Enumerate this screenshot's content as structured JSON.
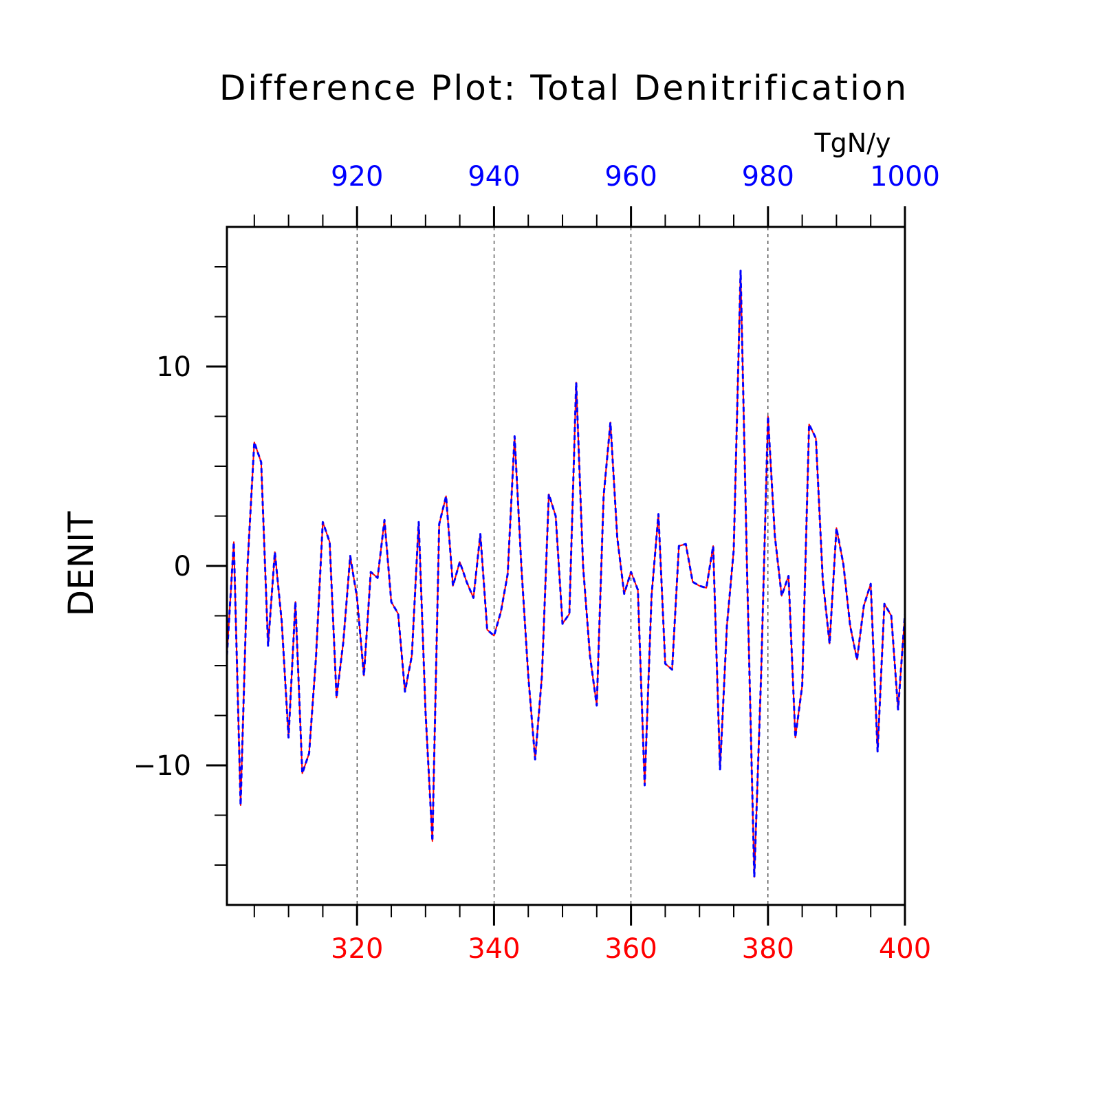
{
  "chart_data": {
    "type": "line",
    "title": "Difference Plot: Total Denitrification",
    "units": "TgN/y",
    "ylabel": "DENIT",
    "xlim_bottom": [
      301,
      400
    ],
    "xlim_top": [
      901,
      1000
    ],
    "ylim": [
      -17,
      17
    ],
    "bottom_axis": {
      "ticks": [
        "320",
        "340",
        "360",
        "380",
        "400"
      ],
      "values": [
        320,
        340,
        360,
        380,
        400
      ],
      "color": "#ff0000"
    },
    "top_axis": {
      "ticks": [
        "920",
        "940",
        "960",
        "980",
        "1000"
      ],
      "values": [
        920,
        940,
        960,
        980,
        1000
      ],
      "color": "#0000ff"
    },
    "y_ticks": {
      "labels": [
        "10",
        "0",
        "−10"
      ],
      "values": [
        10,
        0,
        -10
      ]
    },
    "grid": "vertical dashed at major x ticks",
    "series": [
      {
        "color": "#ff0000",
        "style": "solid",
        "x": [
          301,
          302,
          303,
          304,
          305,
          306,
          307,
          308,
          309,
          310,
          311,
          312,
          313,
          314,
          315,
          316,
          317,
          318,
          319,
          320,
          321,
          322,
          323,
          324,
          325,
          326,
          327,
          328,
          329,
          330,
          331,
          332,
          333,
          334,
          335,
          336,
          337,
          338,
          339,
          340,
          341,
          342,
          343,
          344,
          345,
          346,
          347,
          348,
          349,
          350,
          351,
          352,
          353,
          354,
          355,
          356,
          357,
          358,
          359,
          360,
          361,
          362,
          363,
          364,
          365,
          366,
          367,
          368,
          369,
          370,
          371,
          372,
          373,
          374,
          375,
          376,
          377,
          378,
          379,
          380,
          381,
          382,
          383,
          384,
          385,
          386,
          387,
          388,
          389,
          390,
          391,
          392,
          393,
          394,
          395,
          396,
          397,
          398,
          399,
          400
        ],
        "values": [
          -4.5,
          1.2,
          -12,
          0,
          6.2,
          5.2,
          -4,
          0.7,
          -2.8,
          -8.6,
          -1.8,
          -10.4,
          -9.4,
          -4.6,
          2.2,
          1.2,
          -6.6,
          -3.8,
          0.5,
          -1.6,
          -5.5,
          -0.3,
          -0.6,
          2.3,
          -1.8,
          -2.4,
          -6.3,
          -4.5,
          2.2,
          -7.3,
          -13.8,
          2.1,
          3.5,
          -1,
          0.2,
          -0.8,
          -1.6,
          1.6,
          -3.2,
          -3.5,
          -2.3,
          -0.4,
          6.5,
          -0.1,
          -5.5,
          -9.7,
          -5.5,
          3.6,
          2.5,
          -2.9,
          -2.4,
          9.2,
          0,
          -4.5,
          -7,
          3.5,
          7.2,
          1.4,
          -1.4,
          -0.3,
          -1.2,
          -11,
          -1.5,
          2.6,
          -4.9,
          -5.2,
          1,
          1.1,
          -0.8,
          -1,
          -1.1,
          1,
          -10.2,
          -3,
          0.8,
          14.8,
          -1,
          -15.6,
          -5.5,
          7.5,
          1.5,
          -1.5,
          -0.5,
          -8.6,
          -6,
          7.1,
          6.4,
          -0.7,
          -3.9,
          1.9,
          0.1,
          -3,
          -4.7,
          -2,
          -0.9,
          -9.3,
          -1.9,
          -2.5,
          -7.2,
          -2.4
        ]
      },
      {
        "color": "#0000ff",
        "style": "dashed",
        "x": [
          901,
          902,
          903,
          904,
          905,
          906,
          907,
          908,
          909,
          910,
          911,
          912,
          913,
          914,
          915,
          916,
          917,
          918,
          919,
          920,
          921,
          922,
          923,
          924,
          925,
          926,
          927,
          928,
          929,
          930,
          931,
          932,
          933,
          934,
          935,
          936,
          937,
          938,
          939,
          940,
          941,
          942,
          943,
          944,
          945,
          946,
          947,
          948,
          949,
          950,
          951,
          952,
          953,
          954,
          955,
          956,
          957,
          958,
          959,
          960,
          961,
          962,
          963,
          964,
          965,
          966,
          967,
          968,
          969,
          970,
          971,
          972,
          973,
          974,
          975,
          976,
          977,
          978,
          979,
          980,
          981,
          982,
          983,
          984,
          985,
          986,
          987,
          988,
          989,
          990,
          991,
          992,
          993,
          994,
          995,
          996,
          997,
          998,
          999,
          1000
        ],
        "values": [
          -4.5,
          1.2,
          -12,
          0,
          6.2,
          5.2,
          -4,
          0.7,
          -2.8,
          -8.6,
          -1.8,
          -10.4,
          -9.4,
          -4.6,
          2.2,
          1.2,
          -6.6,
          -3.8,
          0.5,
          -1.6,
          -5.5,
          -0.3,
          -0.6,
          2.3,
          -1.8,
          -2.4,
          -6.3,
          -4.5,
          2.2,
          -7.3,
          -13.8,
          2.1,
          3.5,
          -1,
          0.2,
          -0.8,
          -1.6,
          1.6,
          -3.2,
          -3.5,
          -2.3,
          -0.4,
          6.5,
          -0.1,
          -5.5,
          -9.7,
          -5.5,
          3.6,
          2.5,
          -2.9,
          -2.4,
          9.2,
          0,
          -4.5,
          -7,
          3.5,
          7.2,
          1.4,
          -1.4,
          -0.3,
          -1.2,
          -11,
          -1.5,
          2.6,
          -4.9,
          -5.2,
          1,
          1.1,
          -0.8,
          -1,
          -1.1,
          1,
          -10.2,
          -3,
          0.8,
          14.8,
          -1,
          -15.6,
          -5.5,
          7.5,
          1.5,
          -1.5,
          -0.5,
          -8.6,
          -6,
          7.1,
          6.4,
          -0.7,
          -3.9,
          1.9,
          0.1,
          -3,
          -4.7,
          -2,
          -0.9,
          -9.3,
          -1.9,
          -2.5,
          -7.2,
          -2.4
        ]
      }
    ]
  }
}
